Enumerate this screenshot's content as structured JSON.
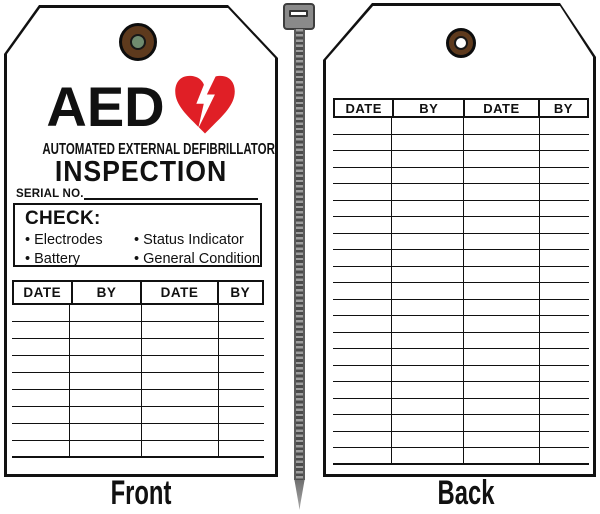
{
  "front_tag": {
    "title": "AED",
    "subtitle": "AUTOMATED EXTERNAL DEFIBRILLATOR",
    "heading": "INSPECTION",
    "serial_label": "SERIAL NO.",
    "check": {
      "title": "CHECK:",
      "bullet": "•",
      "col1": [
        "Electrodes",
        "Battery"
      ],
      "col2": [
        "Status Indicator",
        "General Condition"
      ]
    },
    "table": {
      "headers": [
        "DATE",
        "BY",
        "DATE",
        "BY"
      ],
      "rows": 9
    },
    "caption": "Front"
  },
  "back_tag": {
    "table": {
      "headers": [
        "DATE",
        "BY",
        "DATE",
        "BY"
      ],
      "rows": 21
    },
    "caption": "Back"
  },
  "colors": {
    "heart_red": "#e01f26",
    "grommet_brown": "#5e3a1d",
    "front_hole_green": "#6f8b6f",
    "tie_gray": "#9e9e9e",
    "tie_rib_dark": "#4b4b4b",
    "tie_head_gray": "#8a8a8a",
    "line_black": "#111111"
  }
}
